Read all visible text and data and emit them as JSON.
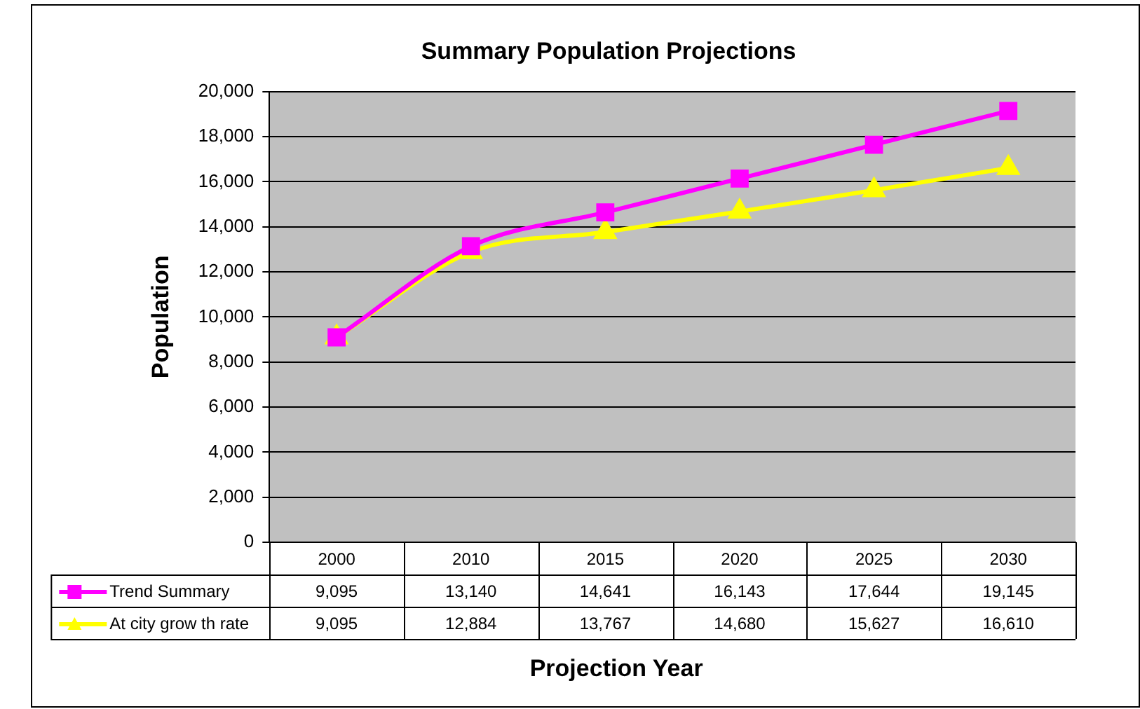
{
  "chart_data": {
    "type": "line",
    "title": "Summary Population Projections",
    "xlabel": "Projection Year",
    "ylabel": "Population",
    "categories": [
      "2000",
      "2010",
      "2015",
      "2020",
      "2025",
      "2030"
    ],
    "series": [
      {
        "name": "Trend Summary",
        "color": "#ff00ff",
        "marker": "square",
        "values": [
          9095,
          13140,
          14641,
          16143,
          17644,
          19145
        ],
        "value_labels": [
          "9,095",
          "13,140",
          "14,641",
          "16,143",
          "17,644",
          "19,145"
        ]
      },
      {
        "name": "At city grow th rate",
        "color": "#ffff00",
        "marker": "triangle",
        "values": [
          9095,
          12884,
          13767,
          14680,
          15627,
          16610
        ],
        "value_labels": [
          "9,095",
          "12,884",
          "13,767",
          "14,680",
          "15,627",
          "16,610"
        ]
      }
    ],
    "ylim": [
      0,
      20000
    ],
    "yticks": [
      0,
      {
        "value": 2000,
        "label": "2,000"
      },
      {
        "value": 4000,
        "label": "4,000"
      },
      {
        "value": 6000,
        "label": "6,000"
      },
      {
        "value": 8000,
        "label": "8,000"
      },
      {
        "value": 10000,
        "label": "10,000"
      },
      {
        "value": 12000,
        "label": "12,000"
      },
      {
        "value": 14000,
        "label": "14,000"
      },
      {
        "value": 16000,
        "label": "16,000"
      },
      {
        "value": 18000,
        "label": "18,000"
      },
      {
        "value": 20000,
        "label": "20,000"
      }
    ],
    "grid": "y",
    "legend": "bottom",
    "line_style": "solid"
  }
}
